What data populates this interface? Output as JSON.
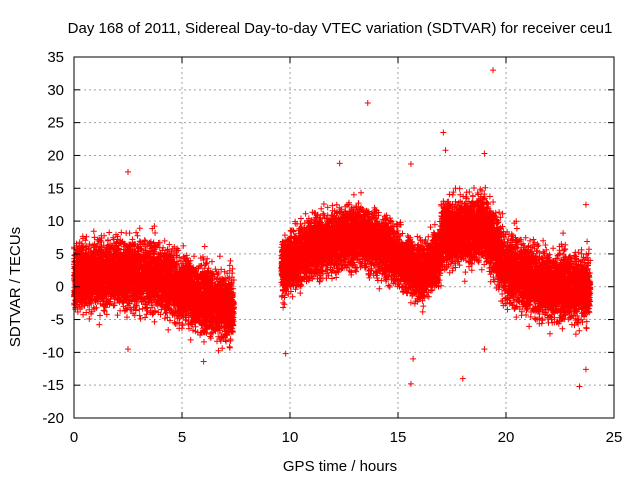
{
  "chart_data": {
    "type": "scatter",
    "title": "Day 168 of 2011, Sidereal Day-to-day VTEC variation (SDTVAR) for receiver ceu1",
    "xlabel": "GPS time / hours",
    "ylabel": "SDTVAR / TECUs",
    "xlim": [
      0,
      25
    ],
    "ylim": [
      -20,
      35
    ],
    "xticks": [
      0,
      5,
      10,
      15,
      20,
      25
    ],
    "yticks": [
      -20,
      -15,
      -10,
      -5,
      0,
      5,
      10,
      15,
      20,
      25,
      30,
      35
    ],
    "grid": true,
    "marker": "+",
    "series_color": "#ff0000",
    "data_gap_hours": [
      7.4,
      9.6
    ],
    "data_segments": [
      {
        "x_start": 0.0,
        "x_end": 7.4,
        "description_center": [
          [
            0,
            1.5
          ],
          [
            2,
            2
          ],
          [
            4,
            1.5
          ],
          [
            6,
            -2
          ],
          [
            7.3,
            -3
          ]
        ],
        "spread": 4.5
      },
      {
        "x_start": 9.6,
        "x_end": 17.0,
        "description_center": [
          [
            9.7,
            3
          ],
          [
            11,
            6
          ],
          [
            13,
            8
          ],
          [
            14.5,
            6
          ],
          [
            16,
            2
          ],
          [
            17,
            5
          ]
        ],
        "spread": 4.0
      },
      {
        "x_start": 17.0,
        "x_end": 23.9,
        "description_center": [
          [
            17.5,
            8
          ],
          [
            19,
            9
          ],
          [
            20,
            3
          ],
          [
            22,
            0
          ],
          [
            23.9,
            0
          ]
        ],
        "spread": 4.5
      }
    ],
    "outliers": [
      {
        "x": 2.5,
        "y": 17.5
      },
      {
        "x": 13.6,
        "y": 28
      },
      {
        "x": 19.4,
        "y": 33
      },
      {
        "x": 17.1,
        "y": 23.5
      },
      {
        "x": 15.6,
        "y": 18.7
      },
      {
        "x": 12.3,
        "y": 18.8
      },
      {
        "x": 18.0,
        "y": -14
      },
      {
        "x": 15.6,
        "y": -14.8
      },
      {
        "x": 15.7,
        "y": -11
      },
      {
        "x": 23.4,
        "y": -15.2
      },
      {
        "x": 23.7,
        "y": -12.6
      },
      {
        "x": 9.8,
        "y": -10.2
      },
      {
        "x": 19.0,
        "y": -9.5
      },
      {
        "x": 6.0,
        "y": -11.4
      },
      {
        "x": 2.5,
        "y": -9.5
      },
      {
        "x": 17.2,
        "y": 20.8
      },
      {
        "x": 19.0,
        "y": 20.3
      },
      {
        "x": 23.7,
        "y": 12.5
      }
    ]
  }
}
